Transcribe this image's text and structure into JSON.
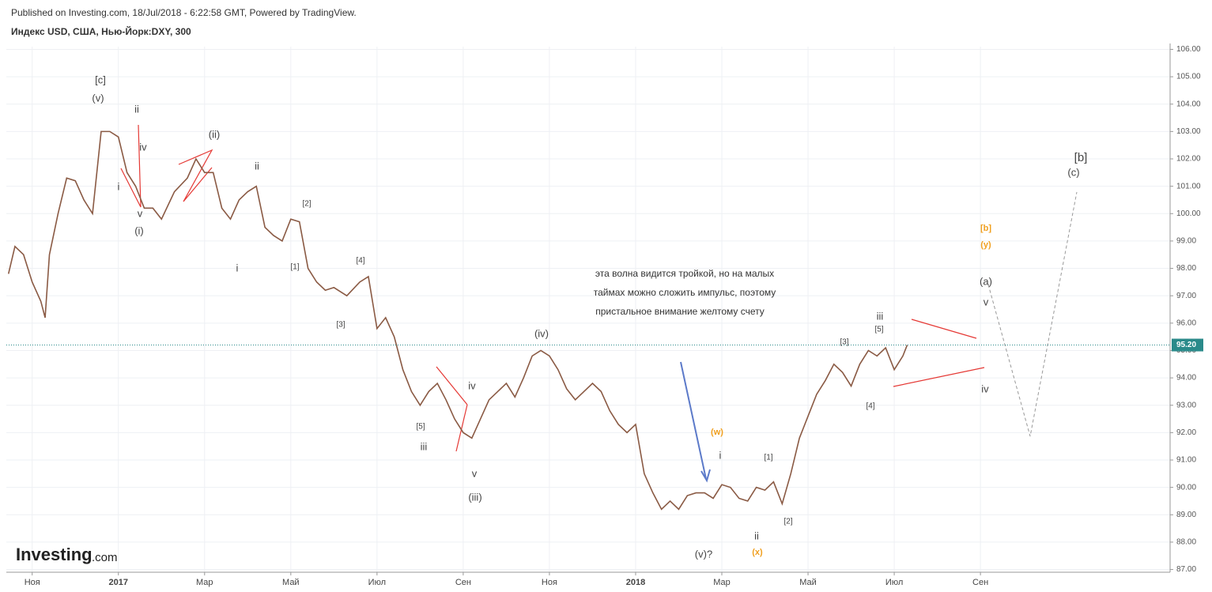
{
  "header": {
    "published": "Published on Investing.com, 18/Jul/2018 - 6:22:58 GMT, Powered by TradingView.",
    "symbol": "Индекс USD, США, Нью-Йорк:DXY, 300",
    "logo": "Investing",
    "logo_suffix": ".com"
  },
  "chart_data": {
    "type": "line",
    "color": "#8a5a44",
    "x": [
      -0.55,
      -0.4,
      -0.2,
      0,
      0.2,
      0.3,
      0.4,
      0.6,
      0.8,
      1,
      1.2,
      1.4,
      1.6,
      1.8,
      2,
      2.2,
      2.4,
      2.6,
      2.8,
      3,
      3.3,
      3.6,
      3.8,
      4,
      4.2,
      4.4,
      4.6,
      4.8,
      5,
      5.2,
      5.4,
      5.6,
      5.8,
      6,
      6.2,
      6.4,
      6.6,
      6.8,
      7,
      7.3,
      7.6,
      7.8,
      8,
      8.2,
      8.4,
      8.6,
      8.8,
      9,
      9.2,
      9.4,
      9.6,
      9.8,
      10,
      10.2,
      10.4,
      10.6,
      10.8,
      11,
      11.2,
      11.4,
      11.6,
      11.8,
      12,
      12.2,
      12.4,
      12.6,
      12.8,
      13,
      13.2,
      13.4,
      13.6,
      13.8,
      14,
      14.2,
      14.4,
      14.6,
      14.8,
      15,
      15.2,
      15.4,
      15.6,
      15.8,
      16,
      16.2,
      16.4,
      16.6,
      16.8,
      17,
      17.2,
      17.4,
      17.6,
      17.8,
      18,
      18.2,
      18.4,
      18.6,
      18.8,
      19,
      19.2,
      19.4,
      19.6,
      19.8,
      20,
      20.2,
      20.3
    ],
    "values": [
      97.8,
      98.8,
      98.5,
      97.5,
      96.8,
      96.2,
      98.5,
      100,
      101.3,
      101.2,
      100.5,
      100,
      103,
      103,
      102.8,
      101.5,
      101,
      100.2,
      100.2,
      99.8,
      100.8,
      101.3,
      102,
      101.5,
      101.5,
      100.2,
      99.8,
      100.5,
      100.8,
      101,
      99.5,
      99.2,
      99,
      99.8,
      99.7,
      98,
      97.5,
      97.2,
      97.3,
      97,
      97.5,
      97.7,
      95.8,
      96.2,
      95.5,
      94.3,
      93.5,
      93,
      93.5,
      93.8,
      93.2,
      92.5,
      92,
      91.8,
      92.5,
      93.2,
      93.5,
      93.8,
      93.3,
      94,
      94.8,
      95,
      94.8,
      94.3,
      93.6,
      93.2,
      93.5,
      93.8,
      93.5,
      92.8,
      92.3,
      92,
      92.3,
      90.5,
      89.8,
      89.2,
      89.5,
      89.2,
      89.7,
      89.8,
      89.8,
      89.6,
      90.1,
      90,
      89.6,
      89.5,
      90,
      89.9,
      90.2,
      89.4,
      90.5,
      91.8,
      92.6,
      93.4,
      93.9,
      94.5,
      94.2,
      93.7,
      94.5,
      95,
      94.8,
      95.1,
      94.3,
      94.8,
      95.2
    ],
    "xlim": [
      -0.6,
      26.4
    ],
    "xticks": [
      {
        "value": 0,
        "label": "Ноя"
      },
      {
        "value": 2,
        "label": "2017"
      },
      {
        "value": 4,
        "label": "Мар"
      },
      {
        "value": 6,
        "label": "Май"
      },
      {
        "value": 8,
        "label": "Июл"
      },
      {
        "value": 10,
        "label": "Сен"
      },
      {
        "value": 12,
        "label": "Ноя"
      },
      {
        "value": 14,
        "label": "2018"
      },
      {
        "value": 16,
        "label": "Мар"
      },
      {
        "value": 18,
        "label": "Май"
      },
      {
        "value": 20,
        "label": "Июл"
      },
      {
        "value": 22,
        "label": "Сен"
      }
    ],
    "ylim": [
      86.9,
      106.1
    ],
    "yticks": [
      {
        "value": 87,
        "label": "87.00"
      },
      {
        "value": 88,
        "label": "88.00"
      },
      {
        "value": 89,
        "label": "89.00"
      },
      {
        "value": 90,
        "label": "90.00"
      },
      {
        "value": 91,
        "label": "91.00"
      },
      {
        "value": 92,
        "label": "92.00"
      },
      {
        "value": 93,
        "label": "93.00"
      },
      {
        "value": 94,
        "label": "94.00"
      },
      {
        "value": 95,
        "label": "95.00"
      },
      {
        "value": 96,
        "label": "96.00"
      },
      {
        "value": 97,
        "label": "97.00"
      },
      {
        "value": 98,
        "label": "98.00"
      },
      {
        "value": 99,
        "label": "99.00"
      },
      {
        "value": 100,
        "label": "100.00"
      },
      {
        "value": 101,
        "label": "101.00"
      },
      {
        "value": 102,
        "label": "102.00"
      },
      {
        "value": 103,
        "label": "103.00"
      },
      {
        "value": 104,
        "label": "104.00"
      },
      {
        "value": 105,
        "label": "105.00"
      },
      {
        "value": 106,
        "label": "106.00"
      }
    ],
    "last_price": {
      "value": 95.2,
      "label": "95.20"
    },
    "grid": true,
    "annotations": [
      "[c]",
      "(v)",
      "ii",
      "iv",
      "i",
      "v",
      "(i)",
      "(ii)",
      "ii",
      "i",
      "[2]",
      "[1]",
      "[4]",
      "[3]",
      "[5]",
      "iii",
      "iv",
      "v",
      "(iii)",
      "(iv)",
      "(w)",
      "i",
      "[1]",
      "[2]",
      "ii",
      "(x)",
      "(v)?",
      "[3]",
      "[5]",
      "iii",
      "[4]",
      "[b]",
      "(y)",
      "(a)",
      "v",
      "iv",
      "[b]",
      "(c)"
    ],
    "note": [
      "эта волна видится тройкой, но на малых",
      "таймах можно сложить импульс, поэтому",
      "пристальное внимание желтому счету"
    ]
  }
}
